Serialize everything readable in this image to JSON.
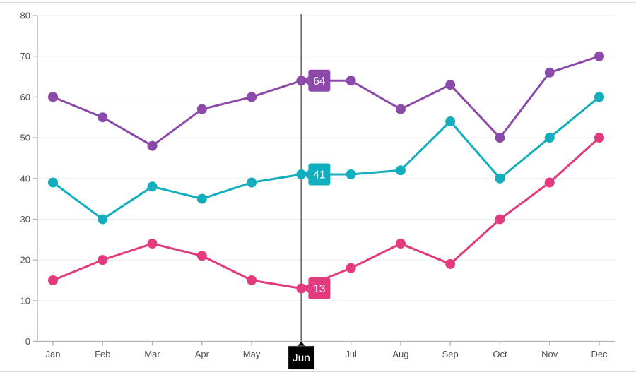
{
  "chart_data": {
    "type": "line",
    "title": "",
    "xlabel": "",
    "ylabel": "",
    "categories": [
      "Jan",
      "Feb",
      "Mar",
      "Apr",
      "May",
      "Jun",
      "Jul",
      "Aug",
      "Sep",
      "Oct",
      "Nov",
      "Dec"
    ],
    "series": [
      {
        "name": "purple-series",
        "color": "#8b4aa9",
        "values": [
          60,
          55,
          48,
          57,
          60,
          64,
          64,
          57,
          63,
          50,
          66,
          70
        ]
      },
      {
        "name": "teal-series",
        "color": "#12aebd",
        "values": [
          39,
          30,
          38,
          35,
          39,
          41,
          41,
          42,
          54,
          40,
          50,
          60
        ]
      },
      {
        "name": "pink-series",
        "color": "#e23a7c",
        "values": [
          15,
          20,
          24,
          21,
          15,
          13,
          18,
          24,
          19,
          30,
          39,
          50
        ]
      }
    ],
    "ylim": [
      0,
      80
    ],
    "ytick_interval": 10,
    "y_tick_labels": [
      "0",
      "10",
      "20",
      "30",
      "40",
      "50",
      "60",
      "70",
      "80"
    ],
    "grid": "horizontal-only",
    "legend": "none",
    "crosshair": {
      "category": "Jun",
      "index": 5,
      "point_labels": [
        {
          "series": "purple-series",
          "value": "64"
        },
        {
          "series": "teal-series",
          "value": "41"
        },
        {
          "series": "pink-series",
          "value": "13"
        }
      ],
      "axis_label": "Jun"
    },
    "colors": {
      "background": "#ffffff",
      "gridline": "#ececec",
      "axis_line": "#b1b1b1",
      "tick": "#b1b1b1",
      "axis_label_text": "#4f4f4f",
      "crosshair_line": "#6d6d6d",
      "crosshair_axis_label_bg": "#000000",
      "crosshair_axis_label_fg": "#ffffff",
      "tooltip_text": "#ffffff",
      "page_divider": "#d9d9d9"
    }
  }
}
